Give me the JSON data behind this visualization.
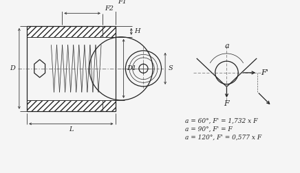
{
  "bg_color": "#f5f5f5",
  "line_color": "#222222",
  "dim_color": "#333333",
  "formula_lines": [
    "a = 60°, F' = 1,732 x F",
    "a = 90°, F' = F",
    "a = 120°, F' = 0,577 x F"
  ],
  "labels": {
    "D": "D",
    "L": "L",
    "F1": "F1",
    "F2": "F2",
    "H": "H",
    "D1": "D1",
    "S": "S",
    "a": "a",
    "F": "F",
    "Fprime": "F'"
  },
  "lw_main": 0.9,
  "lw_thin": 0.5,
  "lw_dim": 0.6,
  "fs_label": 7,
  "fs_formula": 6.5
}
